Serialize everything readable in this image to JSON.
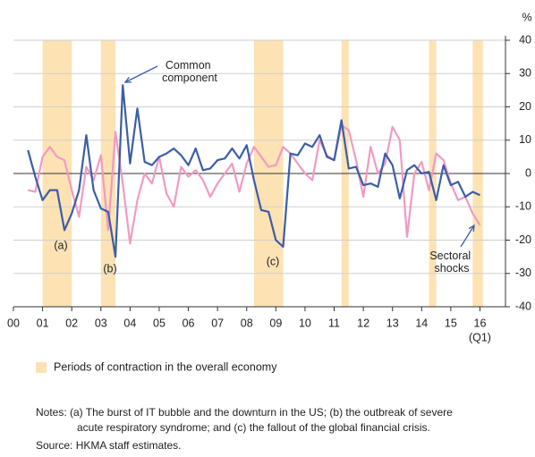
{
  "chart_data": {
    "type": "line",
    "unit": "%",
    "x": [
      2000.5,
      2000.75,
      2001,
      2001.25,
      2001.5,
      2001.75,
      2002,
      2002.25,
      2002.5,
      2002.75,
      2003,
      2003.25,
      2003.5,
      2003.75,
      2004,
      2004.25,
      2004.5,
      2004.75,
      2005,
      2005.25,
      2005.5,
      2005.75,
      2006,
      2006.25,
      2006.5,
      2006.75,
      2007,
      2007.25,
      2007.5,
      2007.75,
      2008,
      2008.25,
      2008.5,
      2008.75,
      2009,
      2009.25,
      2009.5,
      2009.75,
      2010,
      2010.25,
      2010.5,
      2010.75,
      2011,
      2011.25,
      2011.5,
      2011.75,
      2012,
      2012.25,
      2012.5,
      2012.75,
      2013,
      2013.25,
      2013.5,
      2013.75,
      2014,
      2014.25,
      2014.5,
      2014.75,
      2015,
      2015.25,
      2015.5,
      2015.75,
      2016
    ],
    "series": [
      {
        "name": "Common component",
        "color": "#3b5ea8",
        "values": [
          7,
          -1,
          -8,
          -5,
          -5,
          -17,
          -12,
          -5,
          11.5,
          -5,
          -10.5,
          -11.5,
          -25,
          26.5,
          3,
          19.5,
          3.5,
          2.5,
          5,
          6,
          7.5,
          5.5,
          2.5,
          7.5,
          1,
          1.5,
          4,
          4.5,
          7.5,
          4.5,
          8.5,
          -2,
          -11,
          -11.5,
          -20,
          -22,
          6,
          5.5,
          9,
          8,
          11.5,
          5,
          4,
          16,
          1.5,
          2,
          -3.5,
          -3,
          -4,
          6,
          2.5,
          -7.5,
          1,
          2.5,
          0,
          0.5,
          -8,
          2.5,
          -3.5,
          -2.5,
          -7,
          -5.5,
          -6.5
        ]
      },
      {
        "name": "Sectoral shocks",
        "color": "#f29ac2",
        "values": [
          -5,
          -5.5,
          5,
          8,
          5,
          4,
          -5,
          -13,
          2,
          -2,
          5.5,
          -17,
          12.5,
          -3,
          -21,
          -8,
          0,
          -3,
          5,
          -6,
          -10,
          2,
          -1,
          1,
          -2,
          -7,
          -3,
          0,
          3,
          -5.5,
          3,
          8,
          5,
          2,
          2.5,
          8,
          6,
          3,
          0,
          -2,
          10,
          5.5,
          4,
          14.5,
          13,
          4,
          -7,
          8,
          0,
          3,
          14,
          10,
          -19,
          0,
          3.5,
          -5,
          6,
          4,
          -3,
          -8,
          -7,
          -12,
          -15.5
        ]
      }
    ],
    "shading": {
      "name": "Periods of contraction in the overall economy",
      "color": "#fde2b4",
      "periods": [
        [
          2001,
          2002
        ],
        [
          2003,
          2003.5
        ],
        [
          2008.25,
          2009.25
        ],
        [
          2011.25,
          2011.5
        ],
        [
          2014.25,
          2014.5
        ],
        [
          2015.75,
          2016.1
        ]
      ]
    },
    "xlim": [
      2000,
      2016.875
    ],
    "xticks": [
      {
        "value": 2000,
        "label": "00"
      },
      {
        "value": 2001,
        "label": "01"
      },
      {
        "value": 2002,
        "label": "02"
      },
      {
        "value": 2003,
        "label": "03"
      },
      {
        "value": 2004,
        "label": "04"
      },
      {
        "value": 2005,
        "label": "05"
      },
      {
        "value": 2006,
        "label": "06"
      },
      {
        "value": 2007,
        "label": "07"
      },
      {
        "value": 2008,
        "label": "08"
      },
      {
        "value": 2009,
        "label": "09"
      },
      {
        "value": 2010,
        "label": "10"
      },
      {
        "value": 2011,
        "label": "11"
      },
      {
        "value": 2012,
        "label": "12"
      },
      {
        "value": 2013,
        "label": "13"
      },
      {
        "value": 2014,
        "label": "14"
      },
      {
        "value": 2015,
        "label": "15"
      },
      {
        "value": 2016,
        "label": "16"
      }
    ],
    "x_last_tick_note": "(Q1)",
    "ylim": [
      -40,
      40
    ],
    "yticks": [
      40,
      30,
      20,
      10,
      0,
      -10,
      -20,
      -30,
      -40
    ],
    "grid": true,
    "annotations": [
      "(a)",
      "(b)",
      "(c)"
    ],
    "notes": [
      "Notes: (a) The burst of IT bubble and the downturn in the US; (b) the outbreak of severe",
      "acute respiratory syndrome; and (c) the fallout of the global financial crisis."
    ],
    "source": "Source: HKMA staff estimates."
  }
}
